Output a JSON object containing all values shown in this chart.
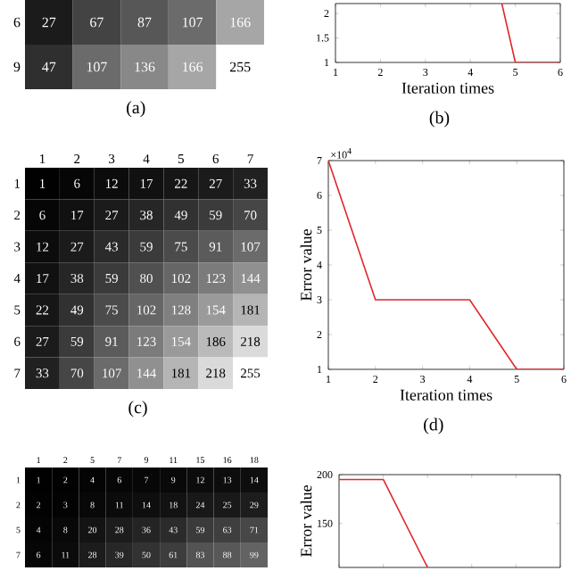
{
  "chart_data": [
    {
      "type": "heatmap",
      "title": "(a)",
      "data_labels": true,
      "categories": [
        null,
        null,
        null,
        null,
        null
      ],
      "y_categories": [
        "6",
        "9"
      ],
      "cells": [
        [
          27,
          67,
          87,
          107,
          166
        ],
        [
          47,
          107,
          136,
          166,
          255
        ]
      ]
    },
    {
      "type": "line",
      "title": "(b)",
      "xlabel": "Iteration times",
      "x": [
        4.7,
        5,
        6
      ],
      "values": [
        2.2,
        1,
        1
      ],
      "color": "#e0262b",
      "xlim": [
        1,
        6
      ],
      "ylim": [
        1,
        2.2
      ],
      "xticks": [
        1,
        2,
        3,
        4,
        5,
        6
      ],
      "yticks": [
        1,
        1.5,
        2
      ]
    },
    {
      "type": "heatmap",
      "title": "(c)",
      "data_labels": true,
      "categories": [
        "1",
        "2",
        "3",
        "4",
        "5",
        "6",
        "7"
      ],
      "y_categories": [
        "1",
        "2",
        "3",
        "4",
        "5",
        "6",
        "7"
      ],
      "cells": [
        [
          1,
          6,
          12,
          17,
          22,
          27,
          33
        ],
        [
          6,
          17,
          27,
          38,
          49,
          59,
          70
        ],
        [
          12,
          27,
          43,
          59,
          75,
          91,
          107
        ],
        [
          17,
          38,
          59,
          80,
          102,
          123,
          144
        ],
        [
          22,
          49,
          75,
          102,
          128,
          154,
          181
        ],
        [
          27,
          59,
          91,
          123,
          154,
          186,
          218
        ],
        [
          33,
          70,
          107,
          144,
          181,
          218,
          255
        ]
      ]
    },
    {
      "type": "line",
      "title": "(d)",
      "xlabel": "Iteration times",
      "ylabel": "Error value",
      "annotations": [
        "×10$^{4}$"
      ],
      "x": [
        1,
        2,
        4,
        5,
        6
      ],
      "values": [
        7,
        3,
        3,
        1,
        1
      ],
      "color": "#e0262b",
      "xlim": [
        1,
        6
      ],
      "ylim": [
        1,
        7
      ],
      "xticks": [
        1,
        2,
        3,
        4,
        5,
        6
      ],
      "yticks": [
        1,
        2,
        3,
        4,
        5,
        6,
        7
      ]
    },
    {
      "type": "heatmap",
      "data_labels": true,
      "categories": [
        "1",
        "2",
        "5",
        "7",
        "9",
        "11",
        "15",
        "16",
        "18"
      ],
      "y_categories": [
        "1",
        "2",
        "5",
        "7"
      ],
      "cells": [
        [
          1,
          2,
          4,
          6,
          7,
          9,
          12,
          13,
          14
        ],
        [
          2,
          3,
          8,
          11,
          14,
          18,
          24,
          25,
          29
        ],
        [
          4,
          8,
          20,
          28,
          36,
          43,
          59,
          63,
          71
        ],
        [
          6,
          11,
          28,
          39,
          50,
          61,
          83,
          88,
          99
        ]
      ]
    },
    {
      "type": "line",
      "ylabel": "Error value",
      "categories": [
        null,
        null,
        null,
        null,
        null,
        null
      ],
      "values": [
        195,
        195,
        105,
        null,
        null,
        null
      ],
      "color": "#e0262b",
      "ylim": [
        105,
        200
      ],
      "yticks": [
        150,
        200
      ]
    }
  ]
}
